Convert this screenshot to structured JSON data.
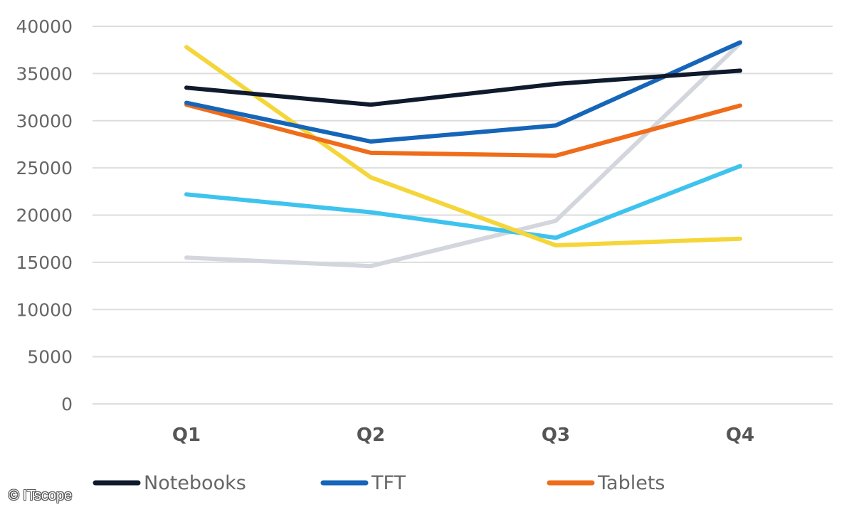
{
  "chart_data": {
    "type": "line",
    "title": "",
    "xlabel": "",
    "ylabel": "",
    "categories": [
      "Q1",
      "Q2",
      "Q3",
      "Q4"
    ],
    "ylim": [
      0,
      40000
    ],
    "yticks": [
      "0",
      "5000",
      "10000",
      "15000",
      "20000",
      "25000",
      "30000",
      "35000",
      "40000"
    ],
    "grid": "horizontal",
    "legend_position": "bottom",
    "series": [
      {
        "name": "Notebooks",
        "color": "#0f1b2d",
        "values": [
          33500,
          31700,
          33900,
          35300
        ]
      },
      {
        "name": "TFT",
        "color": "#1565b8",
        "values": [
          31900,
          27800,
          29500,
          38300
        ]
      },
      {
        "name": "Tablets",
        "color": "#ef6c1a",
        "values": [
          31700,
          26600,
          26300,
          31600
        ]
      },
      {
        "color": "#f5d63a",
        "values": [
          37800,
          24000,
          16800,
          17500
        ]
      },
      {
        "color": "#3ec3ef",
        "values": [
          22200,
          20300,
          17600,
          25200
        ]
      },
      {
        "color": "#d3d6dc",
        "values": [
          15500,
          14600,
          19400,
          38200
        ]
      }
    ]
  },
  "watermark": "© ITscope"
}
